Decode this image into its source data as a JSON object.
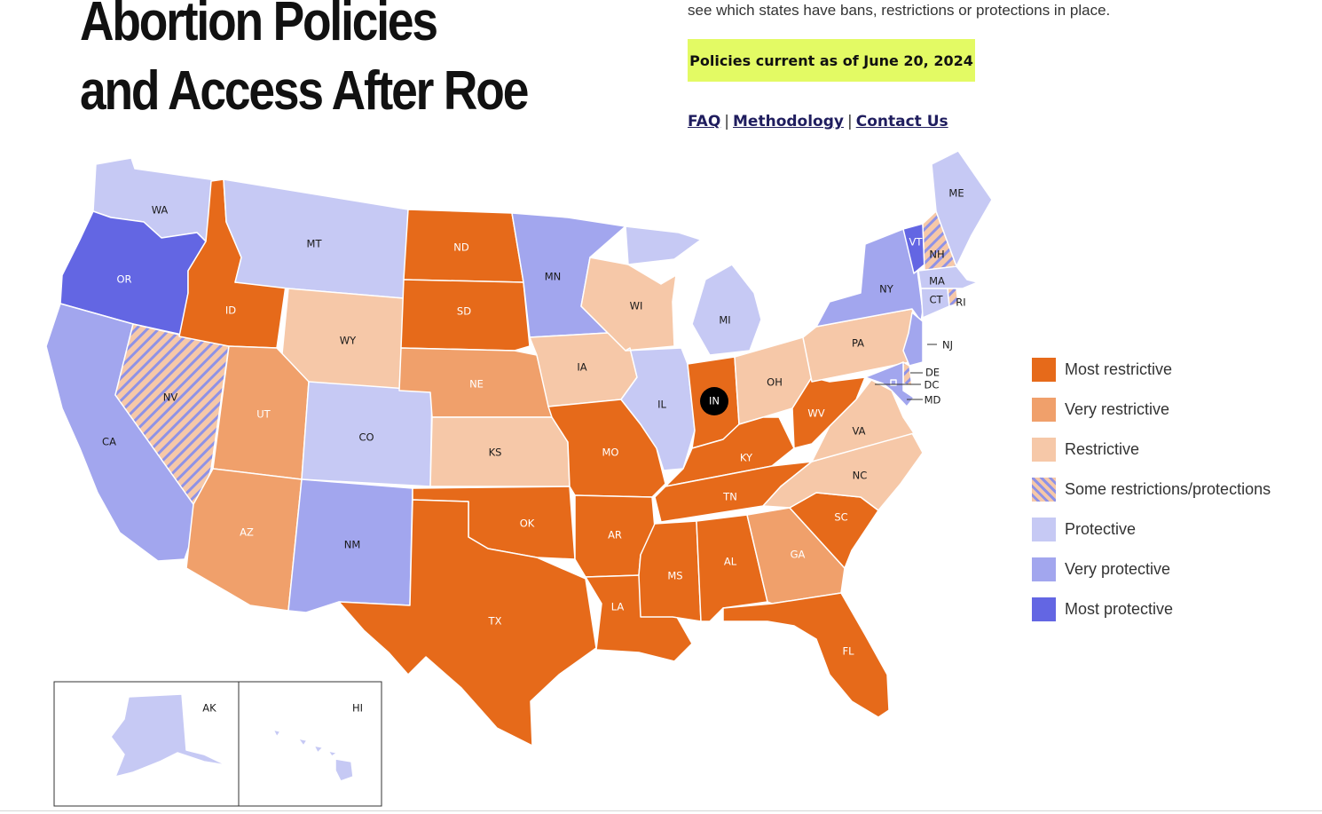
{
  "header": {
    "title_line1": "Abortion Policies",
    "title_line2": "and Access After Roe",
    "intro_tail": "see which states have bans, restrictions or protections in place.",
    "updated": "Policies current as of June 20, 2024",
    "links": [
      "FAQ",
      "Methodology",
      "Contact Us"
    ],
    "link_separator": "|"
  },
  "legend": [
    {
      "label": "Most restrictive",
      "color": "#e66a1a"
    },
    {
      "label": "Very restrictive",
      "color": "#f0a06b"
    },
    {
      "label": "Restrictive",
      "color": "#f6c8a8"
    },
    {
      "label": "Some restrictions/protections",
      "color": "hatch"
    },
    {
      "label": "Protective",
      "color": "#c6c9f4"
    },
    {
      "label": "Very protective",
      "color": "#a2a6ee"
    },
    {
      "label": "Most protective",
      "color": "#6366e3"
    }
  ],
  "states": [
    {
      "abbr": "WA",
      "level": "Protective"
    },
    {
      "abbr": "OR",
      "level": "Most protective"
    },
    {
      "abbr": "CA",
      "level": "Very protective"
    },
    {
      "abbr": "NV",
      "level": "Some restrictions/protections"
    },
    {
      "abbr": "ID",
      "level": "Most restrictive"
    },
    {
      "abbr": "MT",
      "level": "Protective"
    },
    {
      "abbr": "WY",
      "level": "Restrictive"
    },
    {
      "abbr": "UT",
      "level": "Very restrictive"
    },
    {
      "abbr": "AZ",
      "level": "Very restrictive"
    },
    {
      "abbr": "CO",
      "level": "Protective"
    },
    {
      "abbr": "NM",
      "level": "Very protective"
    },
    {
      "abbr": "ND",
      "level": "Most restrictive"
    },
    {
      "abbr": "SD",
      "level": "Most restrictive"
    },
    {
      "abbr": "NE",
      "level": "Very restrictive"
    },
    {
      "abbr": "KS",
      "level": "Restrictive"
    },
    {
      "abbr": "OK",
      "level": "Most restrictive"
    },
    {
      "abbr": "TX",
      "level": "Most restrictive"
    },
    {
      "abbr": "MN",
      "level": "Very protective"
    },
    {
      "abbr": "IA",
      "level": "Restrictive"
    },
    {
      "abbr": "MO",
      "level": "Most restrictive"
    },
    {
      "abbr": "AR",
      "level": "Most restrictive"
    },
    {
      "abbr": "LA",
      "level": "Most restrictive"
    },
    {
      "abbr": "WI",
      "level": "Restrictive"
    },
    {
      "abbr": "IL",
      "level": "Protective"
    },
    {
      "abbr": "MI",
      "level": "Protective"
    },
    {
      "abbr": "IN",
      "level": "Most restrictive"
    },
    {
      "abbr": "OH",
      "level": "Restrictive"
    },
    {
      "abbr": "KY",
      "level": "Most restrictive"
    },
    {
      "abbr": "TN",
      "level": "Most restrictive"
    },
    {
      "abbr": "MS",
      "level": "Most restrictive"
    },
    {
      "abbr": "AL",
      "level": "Most restrictive"
    },
    {
      "abbr": "GA",
      "level": "Very restrictive"
    },
    {
      "abbr": "FL",
      "level": "Most restrictive"
    },
    {
      "abbr": "SC",
      "level": "Most restrictive"
    },
    {
      "abbr": "NC",
      "level": "Restrictive"
    },
    {
      "abbr": "VA",
      "level": "Restrictive"
    },
    {
      "abbr": "WV",
      "level": "Most restrictive"
    },
    {
      "abbr": "PA",
      "level": "Restrictive"
    },
    {
      "abbr": "NY",
      "level": "Very protective"
    },
    {
      "abbr": "VT",
      "level": "Most protective"
    },
    {
      "abbr": "NH",
      "level": "Some restrictions/protections"
    },
    {
      "abbr": "ME",
      "level": "Protective"
    },
    {
      "abbr": "MA",
      "level": "Protective"
    },
    {
      "abbr": "RI",
      "level": "Some restrictions/protections"
    },
    {
      "abbr": "CT",
      "level": "Protective"
    },
    {
      "abbr": "NJ",
      "level": "Very protective"
    },
    {
      "abbr": "DE",
      "level": "Some restrictions/protections"
    },
    {
      "abbr": "DC",
      "level": "Very protective"
    },
    {
      "abbr": "MD",
      "level": "Very protective"
    },
    {
      "abbr": "AK",
      "level": "Protective"
    },
    {
      "abbr": "HI",
      "level": "Protective"
    }
  ]
}
